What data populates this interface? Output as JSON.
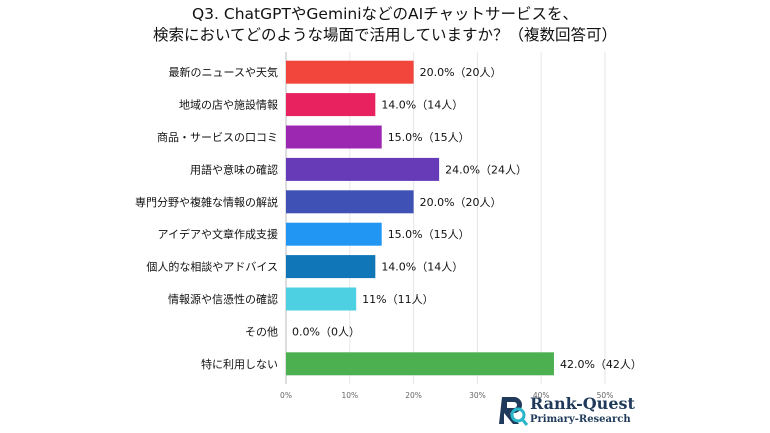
{
  "title": {
    "line1": "Q3. ChatGPTやGeminiなどのAIチャットサービスを、",
    "line2": "検索においてどのような場面で活用していますか？（複数回答可）"
  },
  "chart_data": {
    "type": "bar",
    "orientation": "horizontal",
    "categories": [
      "最新のニュースや天気",
      "地域の店や施設情報",
      "商品・サービスの口コミ",
      "用語や意味の確認",
      "専門分野や複雑な情報の解説",
      "アイデアや文章作成支援",
      "個人的な相談やアドバイス",
      "情報源や信憑性の確認",
      "その他",
      "特に利用しない"
    ],
    "values": [
      20.0,
      14.0,
      15.0,
      24.0,
      20.0,
      15.0,
      14.0,
      11,
      0.0,
      42.0
    ],
    "data_labels": [
      "20.0%（20人）",
      "14.0%（14人）",
      "15.0%（15人）",
      "24.0%（24人）",
      "20.0%（20人）",
      "15.0%（15人）",
      "14.0%（14人）",
      "11%（11人）",
      "0.0%（0人）",
      "42.0%（42人）"
    ],
    "colors": [
      "#f2463c",
      "#e8215f",
      "#9c27b0",
      "#673ab7",
      "#3f51b5",
      "#2196f3",
      "#1076b8",
      "#4dd0e1",
      "#cccccc",
      "#4caf50"
    ],
    "xlim": [
      0,
      50
    ],
    "xticks": [
      "0%",
      "10%",
      "20%",
      "30%",
      "40%",
      "50%"
    ],
    "grid": true
  },
  "logo": {
    "line1": "Rank-Quest",
    "line2": "Primary-Research"
  }
}
